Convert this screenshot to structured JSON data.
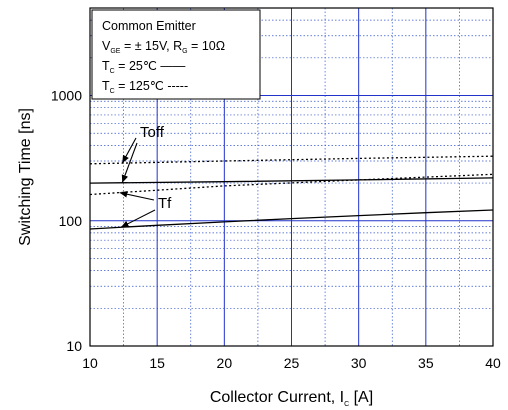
{
  "chart_data": {
    "type": "line",
    "xlabel": "Collector Current, I",
    "xlabel_sub": "C",
    "xlabel_unit": " [A]",
    "ylabel": "Switching Time [ns]",
    "xlim": [
      10,
      40
    ],
    "ylim": [
      10,
      5000
    ],
    "yscale": "log",
    "grid": true,
    "x_ticks": [
      10,
      15,
      20,
      25,
      30,
      35,
      40
    ],
    "y_ticks": [
      10,
      100,
      1000
    ],
    "legend": {
      "placement": "top-left",
      "lines": [
        {
          "id": "title",
          "parts": [
            {
              "t": "Common Emitter"
            }
          ]
        },
        {
          "id": "cond",
          "parts": [
            {
              "t": "V"
            },
            {
              "t": "GE",
              "sub": true
            },
            {
              "t": " = ±  15V, R"
            },
            {
              "t": "G",
              "sub": true
            },
            {
              "t": " = 10Ω"
            }
          ]
        },
        {
          "id": "tc25",
          "parts": [
            {
              "t": "T"
            },
            {
              "t": "C",
              "sub": true
            },
            {
              "t": " =  25℃ ——"
            }
          ]
        },
        {
          "id": "tc125",
          "parts": [
            {
              "t": "T"
            },
            {
              "t": "C",
              "sub": true
            },
            {
              "t": " = 125℃ -----"
            }
          ]
        }
      ]
    },
    "series": [
      {
        "key": "toff_25",
        "dash": "solid",
        "x": [
          10,
          20,
          30,
          40
        ],
        "y": [
          200,
          205,
          212,
          220
        ]
      },
      {
        "key": "toff_125",
        "dash": "dotted",
        "x": [
          10,
          20,
          30,
          40
        ],
        "y": [
          285,
          300,
          315,
          328
        ]
      },
      {
        "key": "tf_25",
        "dash": "solid",
        "x": [
          10,
          15,
          20,
          25,
          30,
          35,
          40
        ],
        "y": [
          86,
          92,
          98,
          104,
          110,
          116,
          122
        ]
      },
      {
        "key": "tf_125",
        "dash": "dotted",
        "x": [
          10,
          20,
          30,
          40
        ],
        "y": [
          162,
          190,
          212,
          235
        ]
      }
    ],
    "annotations": [
      {
        "text": "Toff",
        "series": [
          "toff_125",
          "toff_25"
        ]
      },
      {
        "text": "Tf",
        "series": [
          "tf_125",
          "tf_25"
        ]
      }
    ]
  }
}
